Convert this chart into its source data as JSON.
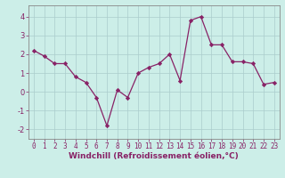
{
  "x": [
    0,
    1,
    2,
    3,
    4,
    5,
    6,
    7,
    8,
    9,
    10,
    11,
    12,
    13,
    14,
    15,
    16,
    17,
    18,
    19,
    20,
    21,
    22,
    23
  ],
  "y": [
    2.2,
    1.9,
    1.5,
    1.5,
    0.8,
    0.5,
    -0.3,
    -1.8,
    0.1,
    -0.3,
    1.0,
    1.3,
    1.5,
    2.0,
    0.6,
    3.8,
    4.0,
    2.5,
    2.5,
    1.6,
    1.6,
    1.5,
    0.4,
    0.5
  ],
  "line_color": "#882266",
  "marker": "D",
  "marker_size": 2.2,
  "bg_color": "#cceee8",
  "grid_color": "#aacccc",
  "xlabel": "Windchill (Refroidissement éolien,°C)",
  "xlabel_fontsize": 6.5,
  "xlim": [
    -0.5,
    23.5
  ],
  "ylim": [
    -2.5,
    4.6
  ],
  "yticks": [
    -2,
    -1,
    0,
    1,
    2,
    3,
    4
  ],
  "xticks": [
    0,
    1,
    2,
    3,
    4,
    5,
    6,
    7,
    8,
    9,
    10,
    11,
    12,
    13,
    14,
    15,
    16,
    17,
    18,
    19,
    20,
    21,
    22,
    23
  ],
  "tick_fontsize": 5.5,
  "tick_color": "#882266",
  "spine_color": "#888888",
  "line_width": 0.9
}
